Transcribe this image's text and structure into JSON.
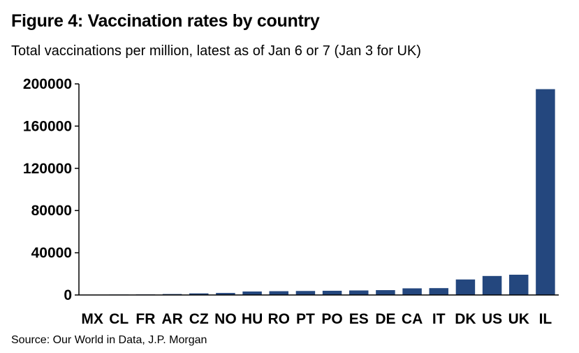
{
  "title": "Figure 4: Vaccination rates by country",
  "subtitle": "Total vaccinations per million, latest as of Jan 6 or 7 (Jan 3 for UK)",
  "source": "Source: Our World in Data, J.P. Morgan",
  "colors": {
    "bar": "#24477e",
    "axis": "#000000"
  },
  "chart_data": {
    "type": "bar",
    "title": "Figure 4: Vaccination rates by country",
    "subtitle": "Total vaccinations per million, latest as of Jan 6 or 7 (Jan 3 for UK)",
    "xlabel": "",
    "ylabel": "",
    "ylim": [
      0,
      200000
    ],
    "yticks": [
      0,
      40000,
      80000,
      120000,
      160000,
      200000
    ],
    "ytick_labels": [
      "0",
      "40000",
      "80000",
      "120000",
      "160000",
      "200000"
    ],
    "grid": false,
    "legend": "none",
    "categories": [
      "MX",
      "CL",
      "FR",
      "AR",
      "CZ",
      "NO",
      "HU",
      "RO",
      "PT",
      "PO",
      "ES",
      "DE",
      "CA",
      "IT",
      "DK",
      "US",
      "UK",
      "IL"
    ],
    "values": [
      300,
      400,
      500,
      900,
      1500,
      1900,
      3300,
      3600,
      3800,
      4000,
      4300,
      4600,
      6300,
      6500,
      14700,
      18000,
      19200,
      195000
    ]
  }
}
